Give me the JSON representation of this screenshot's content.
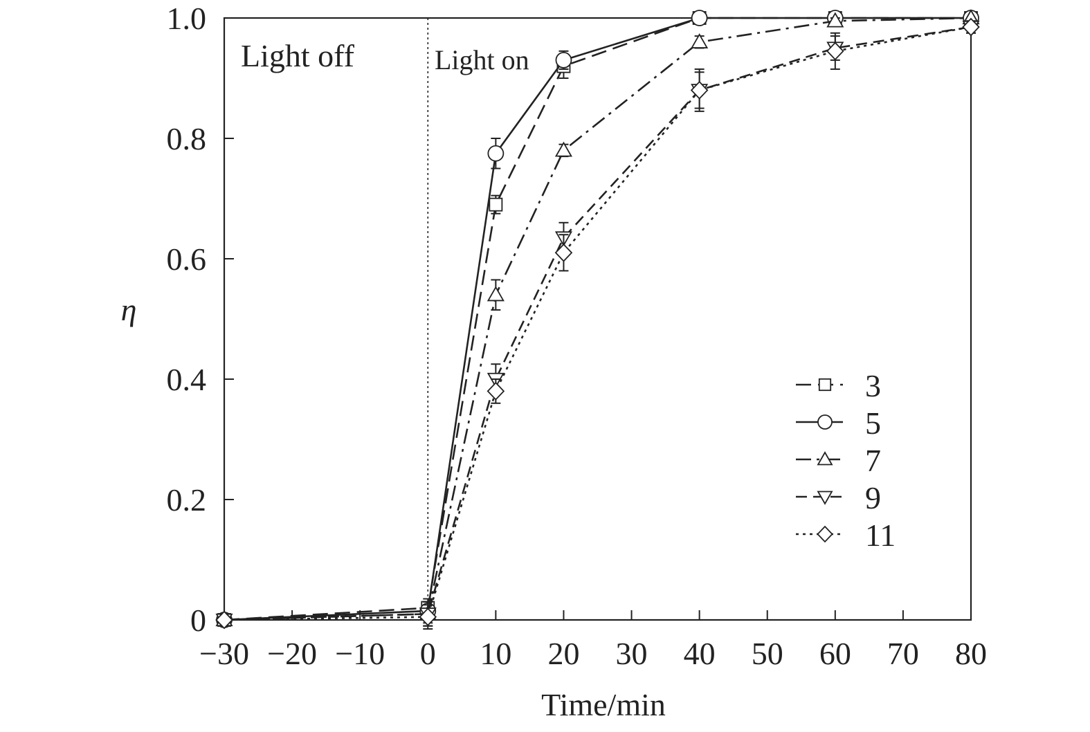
{
  "chart_data": {
    "type": "line",
    "xlabel": "Time/min",
    "ylabel": "η",
    "xlim": [
      -30,
      80
    ],
    "ylim": [
      0,
      1
    ],
    "x_ticks": [
      -30,
      -20,
      -10,
      0,
      10,
      20,
      30,
      40,
      50,
      60,
      70,
      80
    ],
    "x_tick_labels": [
      "−30",
      "−20",
      "−10",
      "0",
      "10",
      "20",
      "30",
      "40",
      "50",
      "60",
      "70",
      "80"
    ],
    "y_ticks": [
      0,
      0.2,
      0.4,
      0.6,
      0.8,
      1.0
    ],
    "y_tick_labels": [
      "0",
      "0.2",
      "0.4",
      "0.6",
      "0.8",
      "1.0"
    ],
    "grid": false,
    "legend_position": "lower-right",
    "annotations": {
      "light_off": "Light off",
      "light_on": "Light on",
      "divider_x": 0
    },
    "x": [
      -30,
      0,
      10,
      20,
      40,
      60,
      80
    ],
    "series": [
      {
        "name": "3",
        "marker": "square",
        "dash": "long-dash",
        "values": [
          0,
          0.02,
          0.69,
          0.92,
          1.0,
          1.0,
          1.0
        ],
        "errors": [
          0,
          0.01,
          0.015,
          0.02,
          0,
          0,
          0
        ]
      },
      {
        "name": "5",
        "marker": "circle",
        "dash": "solid",
        "values": [
          0,
          0.015,
          0.775,
          0.93,
          1.0,
          1.0,
          1.0
        ],
        "errors": [
          0,
          0.02,
          0.025,
          0.015,
          0,
          0,
          0
        ]
      },
      {
        "name": "7",
        "marker": "triangle-up",
        "dash": "dash-dot",
        "values": [
          0,
          0.01,
          0.54,
          0.78,
          0.96,
          0.995,
          1.0
        ],
        "errors": [
          0,
          0.02,
          0.025,
          0.01,
          0.01,
          0.005,
          0
        ]
      },
      {
        "name": "9",
        "marker": "triangle-down",
        "dash": "dashed",
        "values": [
          0,
          0.01,
          0.4,
          0.635,
          0.88,
          0.95,
          0.985
        ],
        "errors": [
          0,
          0.02,
          0.025,
          0.025,
          0.035,
          0.02,
          0.01
        ]
      },
      {
        "name": "11",
        "marker": "diamond",
        "dash": "dotted",
        "values": [
          0,
          0.005,
          0.38,
          0.61,
          0.88,
          0.945,
          0.985
        ],
        "errors": [
          0,
          0.02,
          0.02,
          0.03,
          0.03,
          0.03,
          0.01
        ]
      }
    ]
  }
}
